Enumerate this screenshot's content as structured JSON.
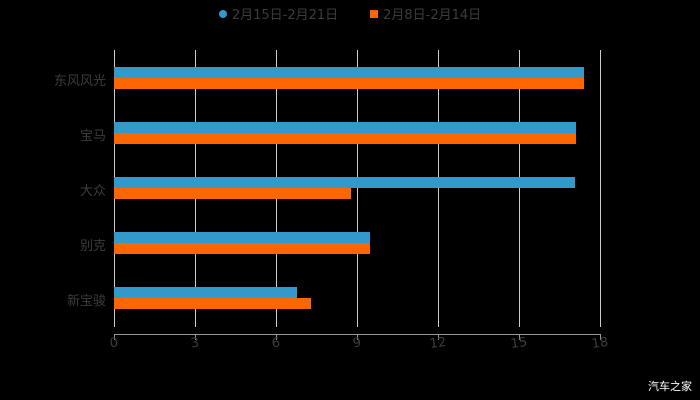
{
  "chart_data": {
    "type": "bar",
    "orientation": "horizontal",
    "title": "",
    "xlabel": "",
    "ylabel": "",
    "categories": [
      "东风风光",
      "宝马",
      "大众",
      "别克",
      "新宝骏"
    ],
    "series": [
      {
        "name": "2月15日-2月21日",
        "color": "#3399cc",
        "values": [
          17.4,
          17.1,
          17.07,
          9.48,
          6.78
        ]
      },
      {
        "name": "2月8日-2月14日",
        "color": "#ff6600",
        "values": [
          17.4,
          17.1,
          8.78,
          9.48,
          7.3
        ]
      }
    ],
    "xlim": [
      0,
      18
    ],
    "xticks": [
      "0",
      "3",
      "6",
      "9",
      "12",
      "15",
      "18"
    ],
    "grid": true,
    "legend_position": "top"
  },
  "legend": [
    {
      "label": "2月15日-2月21日",
      "color": "#3399cc",
      "shape": "circle"
    },
    {
      "label": "2月8日-2月14日",
      "color": "#ff6600",
      "shape": "square"
    }
  ],
  "watermark": "汽车之家"
}
